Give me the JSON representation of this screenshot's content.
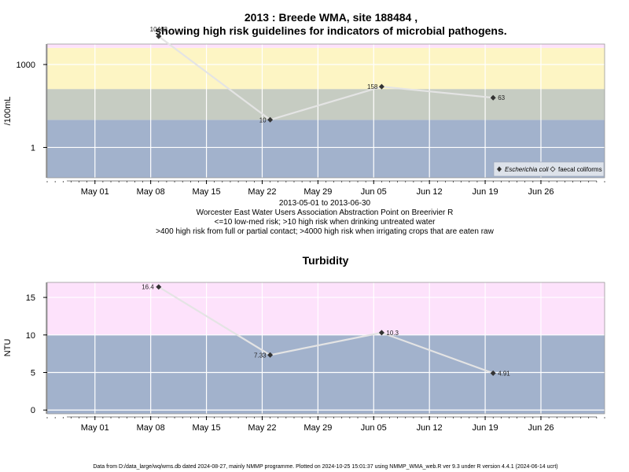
{
  "colors": {
    "band_low": "#a2b2cc",
    "band_med": "#c6ccc2",
    "band_high": "#fdf5c4",
    "band_vhigh": "#fde2fb",
    "line": "#e4e4e4",
    "point": "#333333",
    "grid": "#ffffff"
  },
  "chart_data": [
    {
      "type": "line",
      "title_lines": [
        "2013 : Breede WMA, site 188484 ,",
        "showing high risk guidelines for indicators of microbial pathogens."
      ],
      "ylabel": "/100mL",
      "y_scale": "log",
      "ylim": [
        0.08,
        5500
      ],
      "y_ticks": [
        {
          "value": 1,
          "label": "1"
        },
        {
          "value": 1000,
          "label": "1000"
        }
      ],
      "x_range": [
        "2013-04-25",
        "2013-07-04"
      ],
      "x_ticks": [
        {
          "date": "2013-05-01",
          "label": "May 01"
        },
        {
          "date": "2013-05-08",
          "label": "May 08"
        },
        {
          "date": "2013-05-15",
          "label": "May 15"
        },
        {
          "date": "2013-05-22",
          "label": "May 22"
        },
        {
          "date": "2013-05-29",
          "label": "May 29"
        },
        {
          "date": "2013-06-05",
          "label": "Jun 05"
        },
        {
          "date": "2013-06-12",
          "label": "Jun 12"
        },
        {
          "date": "2013-06-19",
          "label": "Jun 19"
        },
        {
          "date": "2013-06-26",
          "label": "Jun 26"
        }
      ],
      "bands": [
        {
          "from": 0.08,
          "to": 10,
          "color": "low"
        },
        {
          "from": 10,
          "to": 130,
          "color": "med"
        },
        {
          "from": 130,
          "to": 4000,
          "color": "high"
        },
        {
          "from": 4000,
          "to": 5500,
          "color": "vhigh"
        }
      ],
      "series": [
        {
          "name": "Escherichia coli",
          "points": [
            {
              "x": "2013-05-09",
              "y": 10462,
              "label": "10462"
            },
            {
              "x": "2013-05-23",
              "y": 10,
              "label": "10"
            },
            {
              "x": "2013-06-06",
              "y": 158,
              "label": "158"
            },
            {
              "x": "2013-06-20",
              "y": 63,
              "label": "63"
            }
          ]
        }
      ],
      "legend": {
        "position": "bottom-right",
        "entries": [
          "Escherichia coli",
          "faecal coliforms"
        ]
      },
      "notes": [
        "2013-05-01 to 2013-06-30",
        "Worcester East Water Users Association Abstraction Point on Breerivier R",
        "<=10 low-med risk; >10 high risk when drinking untreated water",
        ">400 high risk from full or partial contact; >4000 high risk when irrigating crops that are eaten raw"
      ]
    },
    {
      "type": "line",
      "title": "Turbidity",
      "ylabel": "NTU",
      "y_scale": "linear",
      "ylim": [
        -0.5,
        17
      ],
      "y_ticks": [
        {
          "value": 0,
          "label": "0"
        },
        {
          "value": 5,
          "label": "5"
        },
        {
          "value": 10,
          "label": "10"
        },
        {
          "value": 15,
          "label": "15"
        }
      ],
      "x_range": [
        "2013-04-25",
        "2013-07-04"
      ],
      "x_ticks": [
        {
          "date": "2013-05-01",
          "label": "May 01"
        },
        {
          "date": "2013-05-08",
          "label": "May 08"
        },
        {
          "date": "2013-05-15",
          "label": "May 15"
        },
        {
          "date": "2013-05-22",
          "label": "May 22"
        },
        {
          "date": "2013-05-29",
          "label": "May 29"
        },
        {
          "date": "2013-06-05",
          "label": "Jun 05"
        },
        {
          "date": "2013-06-12",
          "label": "Jun 12"
        },
        {
          "date": "2013-06-19",
          "label": "Jun 19"
        },
        {
          "date": "2013-06-26",
          "label": "Jun 26"
        }
      ],
      "bands": [
        {
          "from": -0.5,
          "to": 10,
          "color": "low"
        },
        {
          "from": 10,
          "to": 17,
          "color": "vhigh"
        }
      ],
      "series": [
        {
          "points": [
            {
              "x": "2013-05-09",
              "y": 16.4,
              "label": "16.4"
            },
            {
              "x": "2013-05-23",
              "y": 7.33,
              "label": "7.33"
            },
            {
              "x": "2013-06-06",
              "y": 10.3,
              "label": "10.3"
            },
            {
              "x": "2013-06-20",
              "y": 4.91,
              "label": "4.91"
            }
          ]
        }
      ]
    }
  ],
  "footer": "Data from D:/data_large/wq/wms.db dated 2024-08-27, mainly NMMP programme. Plotted on 2024-10-25 15:01:37 using NMMP_WMA_web.R ver 9.3 under R version 4.4.1 (2024-06-14 ucrt)"
}
